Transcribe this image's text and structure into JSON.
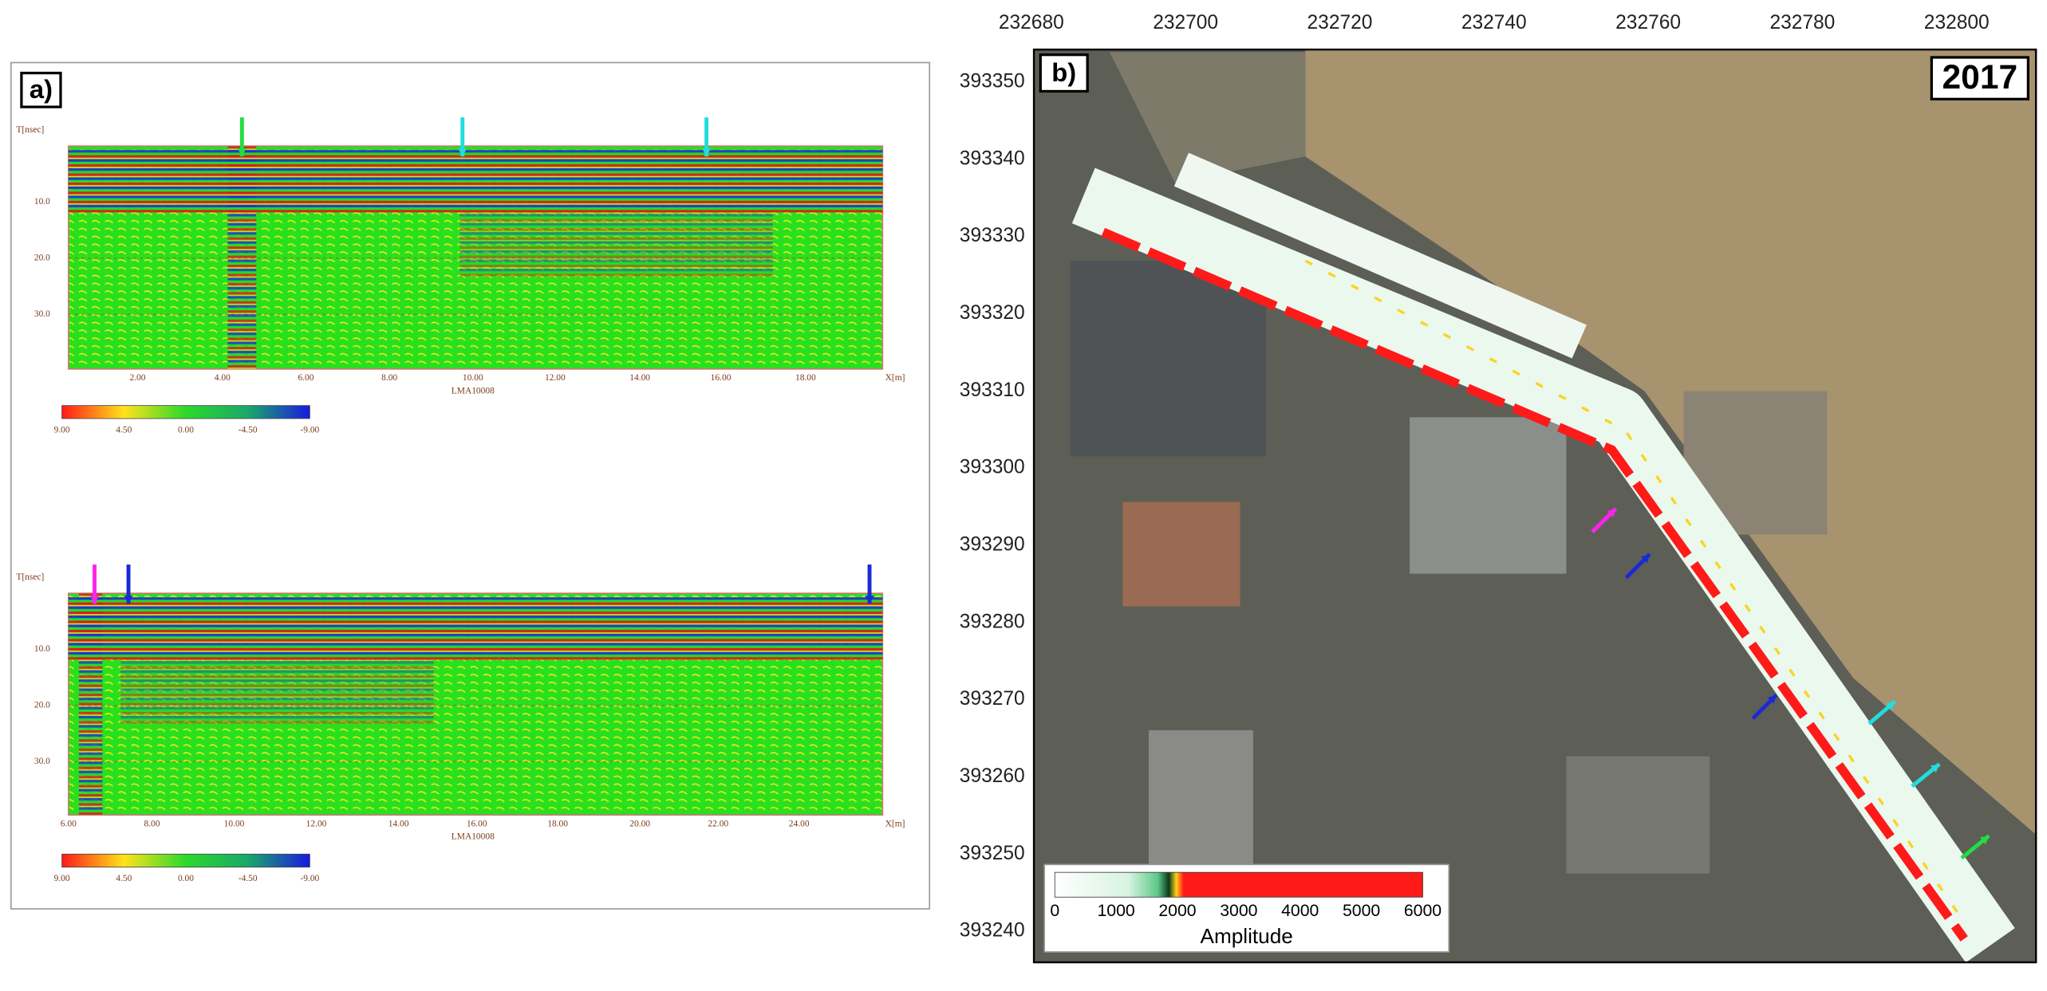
{
  "panel_a": {
    "label": "a)",
    "profiles": [
      {
        "y_axis_label": "T[nsec]",
        "y_ticks": [
          "10.0",
          "20.0",
          "30.0"
        ],
        "x_ticks": [
          "2.00",
          "4.00",
          "6.00",
          "8.00",
          "10.00",
          "12.00",
          "14.00",
          "16.00",
          "18.00"
        ],
        "line_name": "LMA10008",
        "x_axis_label": "X[m]",
        "colorbar_ticks": [
          "9.00",
          "4.50",
          "0.00",
          "-4.50",
          "-9.00"
        ]
      },
      {
        "y_axis_label": "T[nsec]",
        "y_ticks": [
          "10.0",
          "20.0",
          "30.0"
        ],
        "x_ticks": [
          "6.00",
          "8.00",
          "10.00",
          "12.00",
          "14.00",
          "16.00",
          "18.00",
          "20.00",
          "22.00",
          "24.00"
        ],
        "line_name": "LMA10008",
        "x_axis_label": "X[m]",
        "colorbar_ticks": [
          "9.00",
          "4.50",
          "0.00",
          "-4.50",
          "-9.00"
        ]
      }
    ]
  },
  "panel_b": {
    "label": "b)",
    "year": "2017",
    "x_ticks": [
      "232680",
      "232700",
      "232720",
      "232740",
      "232760",
      "232780",
      "232800"
    ],
    "y_ticks": [
      "393350",
      "393340",
      "393330",
      "393320",
      "393310",
      "393300",
      "393290",
      "393280",
      "393270",
      "393260",
      "393250",
      "393240"
    ],
    "legend": {
      "ticks": [
        "0",
        "1000",
        "2000",
        "3000",
        "4000",
        "5000",
        "6000"
      ],
      "title": "Amplitude"
    }
  }
}
